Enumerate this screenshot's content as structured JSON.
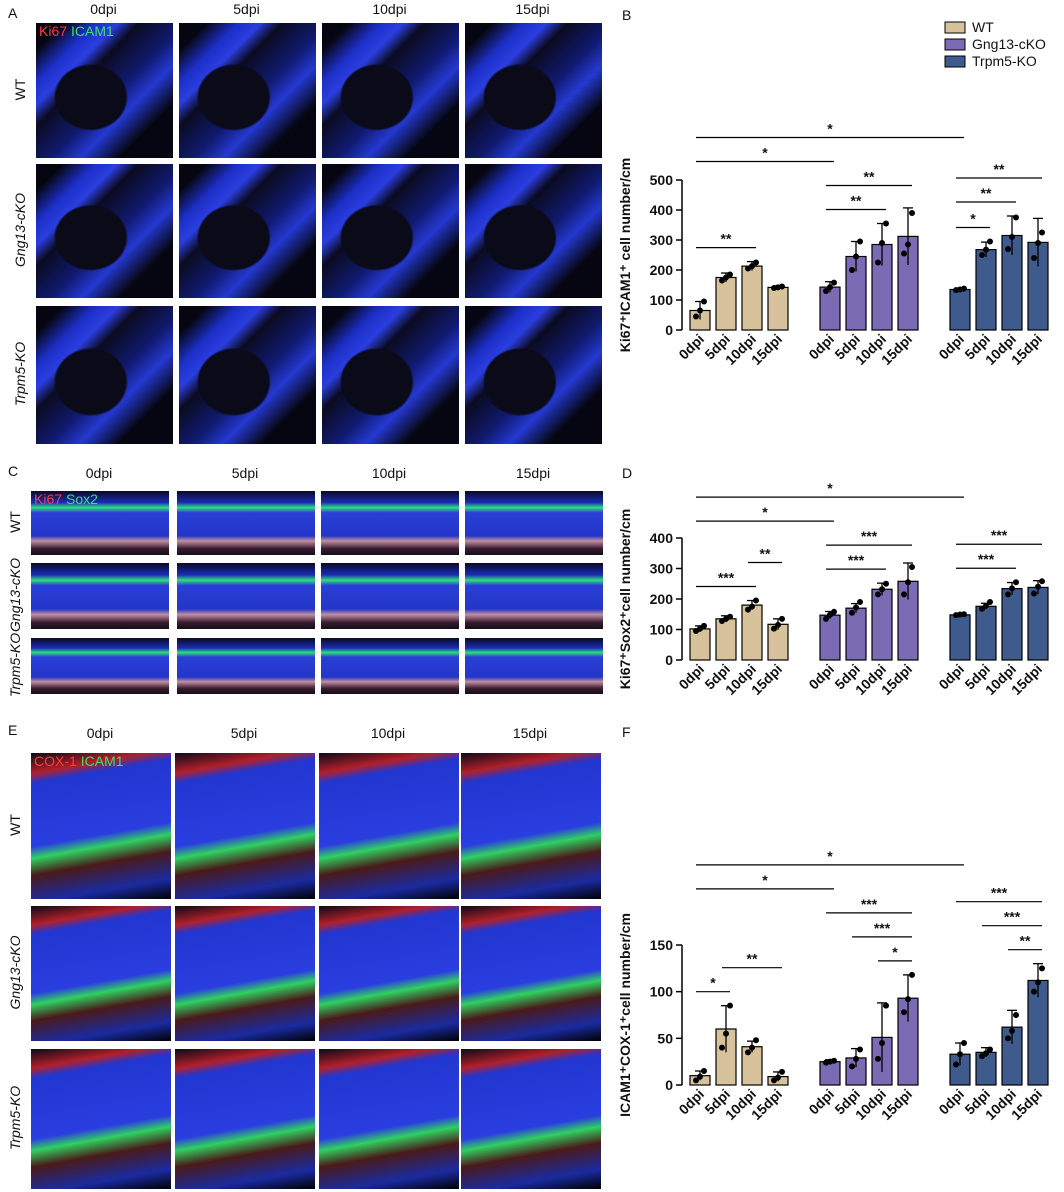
{
  "panels": [
    {
      "label": "A",
      "stain": [
        "Ki67",
        "ICAM1"
      ],
      "columns": [
        "0dpi",
        "5dpi",
        "10dpi",
        "15dpi"
      ],
      "rows": [
        "WT",
        "Gng13-cKO",
        "Trpm5-KO"
      ]
    },
    {
      "label": "C",
      "stain": [
        "Ki67",
        "Sox2"
      ],
      "columns": [
        "0dpi",
        "5dpi",
        "10dpi",
        "15dpi"
      ],
      "rows": [
        "WT",
        "Gng13-cKO",
        "Trpm5-KO"
      ]
    },
    {
      "label": "E",
      "stain": [
        "COX-1",
        "ICAM1"
      ],
      "columns": [
        "0dpi",
        "5dpi",
        "10dpi",
        "15dpi"
      ],
      "rows": [
        "WT",
        "Gng13-cKO",
        "Trpm5-KO"
      ]
    }
  ],
  "chart_data": [
    {
      "type": "bar",
      "panel": "B",
      "ylabel": "Ki67⁺ICAM1⁺ cell number/cm",
      "ylim": [
        0,
        500
      ],
      "yticks": [
        0,
        100,
        200,
        300,
        400,
        500
      ],
      "legend": true,
      "categories": [
        "0dpi",
        "5dpi",
        "10dpi",
        "15dpi"
      ],
      "series": [
        {
          "name": "WT",
          "color": "#d8c29b",
          "values": [
            65,
            175,
            213,
            142
          ],
          "errors": [
            30,
            15,
            15,
            5
          ],
          "points": [
            [
              45,
              65,
              95
            ],
            [
              165,
              175,
              185
            ],
            [
              205,
              213,
              225
            ],
            [
              140,
              142,
              145
            ]
          ]
        },
        {
          "name": "Gng13-cKO",
          "color": "#7b6bb5",
          "values": [
            143,
            245,
            285,
            312
          ],
          "errors": [
            18,
            50,
            70,
            95
          ],
          "points": [
            [
              130,
              143,
              158
            ],
            [
              200,
              245,
              295
            ],
            [
              225,
              290,
              355
            ],
            [
              255,
              285,
              390
            ]
          ]
        },
        {
          "name": "Trpm5-KO",
          "color": "#3f5b8e",
          "values": [
            135,
            268,
            315,
            292
          ],
          "errors": [
            5,
            25,
            65,
            80
          ],
          "points": [
            [
              133,
              135,
              138
            ],
            [
              250,
              268,
              295
            ],
            [
              270,
              310,
              375
            ],
            [
              240,
              290,
              325
            ]
          ]
        }
      ],
      "significance": [
        {
          "from": 0,
          "to": 2,
          "label": "**"
        },
        {
          "from": 4,
          "to": 6,
          "label": "**"
        },
        {
          "from": 4,
          "to": 7,
          "label": "**"
        },
        {
          "from": 8,
          "to": 9,
          "label": "*"
        },
        {
          "from": 8,
          "to": 10,
          "label": "**"
        },
        {
          "from": 8,
          "to": 11,
          "label": "**"
        },
        {
          "from": 0,
          "to": 4,
          "label": "*"
        },
        {
          "from": 0,
          "to": 8,
          "label": "*"
        }
      ]
    },
    {
      "type": "bar",
      "panel": "D",
      "ylabel": "Ki67⁺Sox2⁺cell number/cm",
      "ylim": [
        0,
        400
      ],
      "yticks": [
        0,
        100,
        200,
        300,
        400
      ],
      "legend": false,
      "categories": [
        "0dpi",
        "5dpi",
        "10dpi",
        "15dpi"
      ],
      "series": [
        {
          "name": "WT",
          "color": "#d8c29b",
          "values": [
            102,
            135,
            180,
            117
          ],
          "errors": [
            10,
            10,
            15,
            18
          ],
          "points": [
            [
              95,
              103,
              112
            ],
            [
              128,
              135,
              142
            ],
            [
              165,
              175,
              195
            ],
            [
              103,
              115,
              135
            ]
          ]
        },
        {
          "name": "Gng13-cKO",
          "color": "#7b6bb5",
          "values": [
            147,
            170,
            232,
            258
          ],
          "errors": [
            12,
            15,
            20,
            60
          ],
          "points": [
            [
              135,
              148,
              158
            ],
            [
              155,
              172,
              190
            ],
            [
              215,
              232,
              250
            ],
            [
              215,
              255,
              305
            ]
          ]
        },
        {
          "name": "Trpm5-KO",
          "color": "#3f5b8e",
          "values": [
            148,
            176,
            234,
            238
          ],
          "errors": [
            3,
            10,
            20,
            22
          ],
          "points": [
            [
              147,
              149,
              150
            ],
            [
              168,
              178,
              190
            ],
            [
              215,
              235,
              255
            ],
            [
              218,
              240,
              258
            ]
          ]
        }
      ],
      "significance": [
        {
          "from": 0,
          "to": 2,
          "label": "***"
        },
        {
          "from": 2,
          "to": 3,
          "label": "**"
        },
        {
          "from": 4,
          "to": 6,
          "label": "***"
        },
        {
          "from": 4,
          "to": 7,
          "label": "***"
        },
        {
          "from": 8,
          "to": 10,
          "label": "***"
        },
        {
          "from": 8,
          "to": 11,
          "label": "***"
        },
        {
          "from": 0,
          "to": 4,
          "label": "*"
        },
        {
          "from": 0,
          "to": 8,
          "label": "*"
        }
      ]
    },
    {
      "type": "bar",
      "panel": "F",
      "ylabel": "ICAM1⁺COX-1⁺cell number/cm",
      "ylim": [
        0,
        150
      ],
      "yticks": [
        0,
        50,
        100,
        150
      ],
      "legend": false,
      "categories": [
        "0dpi",
        "5dpi",
        "10dpi",
        "15dpi"
      ],
      "series": [
        {
          "name": "WT",
          "color": "#d8c29b",
          "values": [
            10,
            60,
            41,
            9
          ],
          "errors": [
            5,
            25,
            6,
            5
          ],
          "points": [
            [
              5,
              9,
              15
            ],
            [
              40,
              55,
              85
            ],
            [
              35,
              40,
              48
            ],
            [
              5,
              8,
              14
            ]
          ]
        },
        {
          "name": "Gng13-cKO",
          "color": "#7b6bb5",
          "values": [
            25,
            29,
            51,
            93
          ],
          "errors": [
            2,
            10,
            37,
            25
          ],
          "points": [
            [
              24,
              25,
              26
            ],
            [
              20,
              28,
              38
            ],
            [
              28,
              45,
              85
            ],
            [
              78,
              92,
              118
            ]
          ]
        },
        {
          "name": "Trpm5-KO",
          "color": "#3f5b8e",
          "values": [
            33,
            35,
            62,
            112
          ],
          "errors": [
            12,
            5,
            18,
            18
          ],
          "points": [
            [
              22,
              33,
              45
            ],
            [
              31,
              34,
              38
            ],
            [
              50,
              58,
              75
            ],
            [
              100,
              110,
              125
            ]
          ]
        }
      ],
      "significance": [
        {
          "from": 0,
          "to": 1,
          "label": "*"
        },
        {
          "from": 1,
          "to": 3,
          "label": "**"
        },
        {
          "from": 6,
          "to": 7,
          "label": "*"
        },
        {
          "from": 5,
          "to": 7,
          "label": "***"
        },
        {
          "from": 4,
          "to": 7,
          "label": "***"
        },
        {
          "from": 10,
          "to": 11,
          "label": "**"
        },
        {
          "from": 9,
          "to": 11,
          "label": "***"
        },
        {
          "from": 8,
          "to": 11,
          "label": "***"
        },
        {
          "from": 0,
          "to": 4,
          "label": "*"
        },
        {
          "from": 0,
          "to": 8,
          "label": "*"
        }
      ]
    }
  ]
}
